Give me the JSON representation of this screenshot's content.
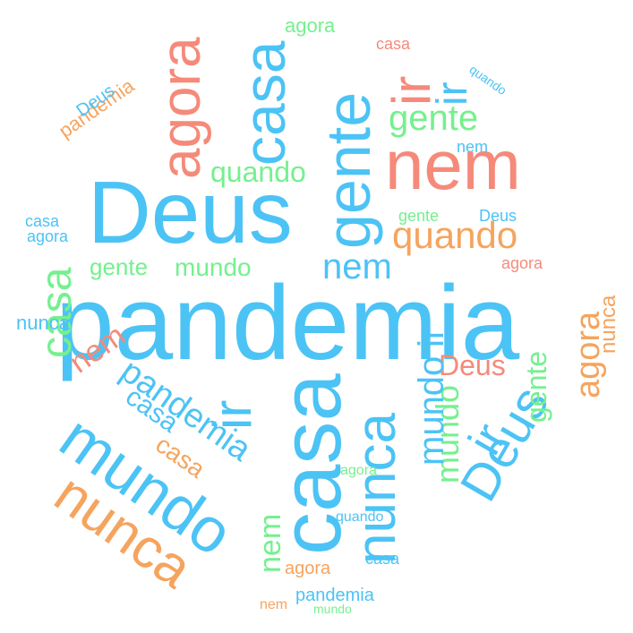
{
  "colors": {
    "blue": "#4cc3f5",
    "salmon": "#f58a7a",
    "green": "#75f08f",
    "orange": "#f5a45e"
  },
  "words": [
    "pandemia",
    "Deus",
    "casa",
    "nem",
    "gente",
    "agora",
    "mundo",
    "ir",
    "nunca",
    "quando"
  ]
}
